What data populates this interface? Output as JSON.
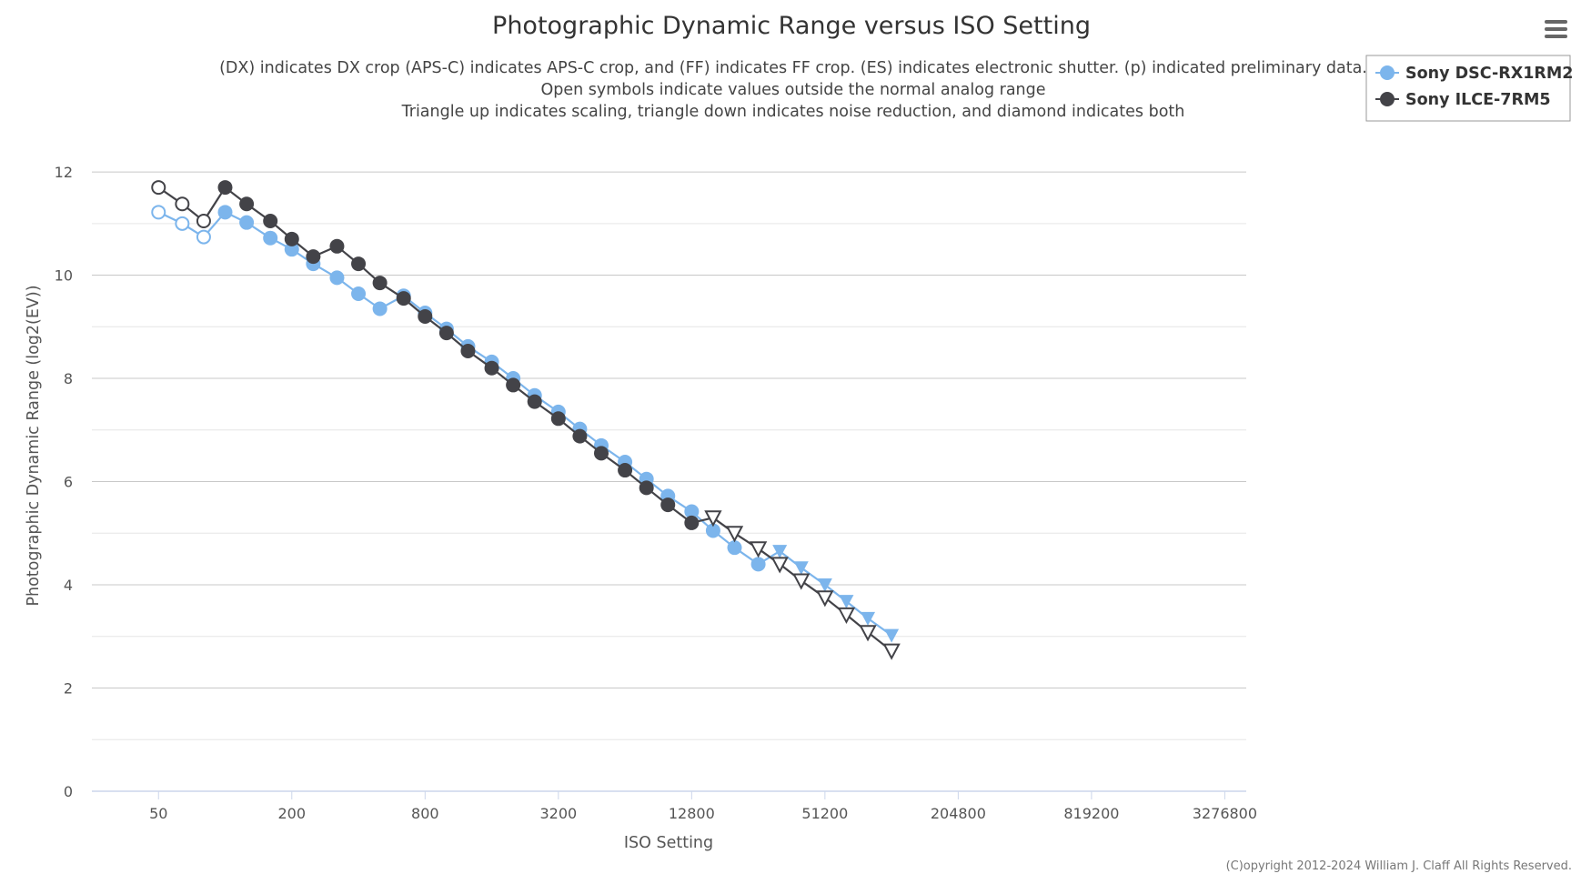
{
  "chart_data": {
    "type": "line",
    "title": "Photographic Dynamic Range versus ISO Setting",
    "subtitle": [
      "(DX) indicates DX crop (APS-C) indicates APS-C crop, and (FF) indicates FF crop. (ES) indicates electronic shutter. (p) indicated preliminary data.",
      "Open symbols indicate values outside the normal analog range",
      "Triangle up indicates scaling, triangle down indicates noise reduction, and diamond indicates both"
    ],
    "xlabel": "ISO Setting",
    "ylabel": "Photographic Dynamic Range (log2(EV))",
    "x_scale": "log2",
    "x_ticks": [
      "50",
      "200",
      "800",
      "3200",
      "12800",
      "51200",
      "204800",
      "819200",
      "3276800"
    ],
    "x_range": [
      25,
      4096000
    ],
    "ylim": [
      0,
      12.9
    ],
    "y_ticks": [
      0,
      2,
      4,
      6,
      8,
      10,
      12
    ],
    "grid": true,
    "legend_position": "top-right",
    "credits": "(C)opyright 2012-2024 William J. Claff All Rights Reserved.",
    "series": [
      {
        "name": "Sony DSC-RX1RM2",
        "color": "#7cb5ec",
        "points": [
          {
            "x": 50,
            "y": 11.22,
            "m": "open"
          },
          {
            "x": 64,
            "y": 11.0,
            "m": "open"
          },
          {
            "x": 80,
            "y": 10.74,
            "m": "open"
          },
          {
            "x": 100,
            "y": 11.22,
            "m": "circle"
          },
          {
            "x": 125,
            "y": 11.02,
            "m": "circle"
          },
          {
            "x": 160,
            "y": 10.72,
            "m": "circle"
          },
          {
            "x": 200,
            "y": 10.5,
            "m": "circle"
          },
          {
            "x": 250,
            "y": 10.22,
            "m": "circle"
          },
          {
            "x": 320,
            "y": 9.95,
            "m": "circle"
          },
          {
            "x": 400,
            "y": 9.64,
            "m": "circle"
          },
          {
            "x": 500,
            "y": 9.35,
            "m": "circle"
          },
          {
            "x": 640,
            "y": 9.6,
            "m": "circle"
          },
          {
            "x": 800,
            "y": 9.27,
            "m": "circle"
          },
          {
            "x": 1000,
            "y": 8.96,
            "m": "circle"
          },
          {
            "x": 1250,
            "y": 8.62,
            "m": "circle"
          },
          {
            "x": 1600,
            "y": 8.32,
            "m": "circle"
          },
          {
            "x": 2000,
            "y": 8.0,
            "m": "circle"
          },
          {
            "x": 2500,
            "y": 7.67,
            "m": "circle"
          },
          {
            "x": 3200,
            "y": 7.35,
            "m": "circle"
          },
          {
            "x": 4000,
            "y": 7.02,
            "m": "circle"
          },
          {
            "x": 5000,
            "y": 6.7,
            "m": "circle"
          },
          {
            "x": 6400,
            "y": 6.38,
            "m": "circle"
          },
          {
            "x": 8000,
            "y": 6.05,
            "m": "circle"
          },
          {
            "x": 10000,
            "y": 5.72,
            "m": "circle"
          },
          {
            "x": 12800,
            "y": 5.42,
            "m": "circle"
          },
          {
            "x": 16000,
            "y": 5.05,
            "m": "circle"
          },
          {
            "x": 20000,
            "y": 4.72,
            "m": "circle"
          },
          {
            "x": 25600,
            "y": 4.4,
            "m": "circle"
          },
          {
            "x": 32000,
            "y": 4.65,
            "m": "tri-down"
          },
          {
            "x": 40000,
            "y": 4.33,
            "m": "tri-down"
          },
          {
            "x": 51200,
            "y": 4.0,
            "m": "tri-down"
          },
          {
            "x": 64000,
            "y": 3.68,
            "m": "tri-down"
          },
          {
            "x": 80000,
            "y": 3.35,
            "m": "tri-down"
          },
          {
            "x": 102400,
            "y": 3.02,
            "m": "tri-down"
          }
        ]
      },
      {
        "name": "Sony ILCE-7RM5",
        "color": "#434348",
        "points": [
          {
            "x": 50,
            "y": 11.7,
            "m": "open"
          },
          {
            "x": 64,
            "y": 11.38,
            "m": "open"
          },
          {
            "x": 80,
            "y": 11.05,
            "m": "open"
          },
          {
            "x": 100,
            "y": 11.7,
            "m": "circle"
          },
          {
            "x": 125,
            "y": 11.38,
            "m": "circle"
          },
          {
            "x": 160,
            "y": 11.05,
            "m": "circle"
          },
          {
            "x": 200,
            "y": 10.7,
            "m": "circle"
          },
          {
            "x": 250,
            "y": 10.36,
            "m": "circle"
          },
          {
            "x": 320,
            "y": 10.56,
            "m": "circle"
          },
          {
            "x": 400,
            "y": 10.22,
            "m": "circle"
          },
          {
            "x": 500,
            "y": 9.85,
            "m": "circle"
          },
          {
            "x": 640,
            "y": 9.55,
            "m": "circle"
          },
          {
            "x": 800,
            "y": 9.2,
            "m": "circle"
          },
          {
            "x": 1000,
            "y": 8.88,
            "m": "circle"
          },
          {
            "x": 1250,
            "y": 8.53,
            "m": "circle"
          },
          {
            "x": 1600,
            "y": 8.2,
            "m": "circle"
          },
          {
            "x": 2000,
            "y": 7.87,
            "m": "circle"
          },
          {
            "x": 2500,
            "y": 7.55,
            "m": "circle"
          },
          {
            "x": 3200,
            "y": 7.22,
            "m": "circle"
          },
          {
            "x": 4000,
            "y": 6.88,
            "m": "circle"
          },
          {
            "x": 5000,
            "y": 6.55,
            "m": "circle"
          },
          {
            "x": 6400,
            "y": 6.22,
            "m": "circle"
          },
          {
            "x": 8000,
            "y": 5.88,
            "m": "circle"
          },
          {
            "x": 10000,
            "y": 5.55,
            "m": "circle"
          },
          {
            "x": 12800,
            "y": 5.2,
            "m": "circle"
          },
          {
            "x": 16000,
            "y": 5.3,
            "m": "tri-down-open"
          },
          {
            "x": 20000,
            "y": 5.0,
            "m": "tri-down-open"
          },
          {
            "x": 25600,
            "y": 4.7,
            "m": "tri-down-open"
          },
          {
            "x": 32000,
            "y": 4.4,
            "m": "tri-down-open"
          },
          {
            "x": 40000,
            "y": 4.08,
            "m": "tri-down-open"
          },
          {
            "x": 51200,
            "y": 3.75,
            "m": "tri-down-open"
          },
          {
            "x": 64000,
            "y": 3.42,
            "m": "tri-down-open"
          },
          {
            "x": 80000,
            "y": 3.08,
            "m": "tri-down-open"
          },
          {
            "x": 102400,
            "y": 2.72,
            "m": "tri-down-open"
          }
        ]
      }
    ]
  },
  "ui": {
    "menu_icon": "hamburger-menu-icon",
    "grid_color": "#e6e6e6",
    "major_grid_color": "#c8c8c8"
  }
}
